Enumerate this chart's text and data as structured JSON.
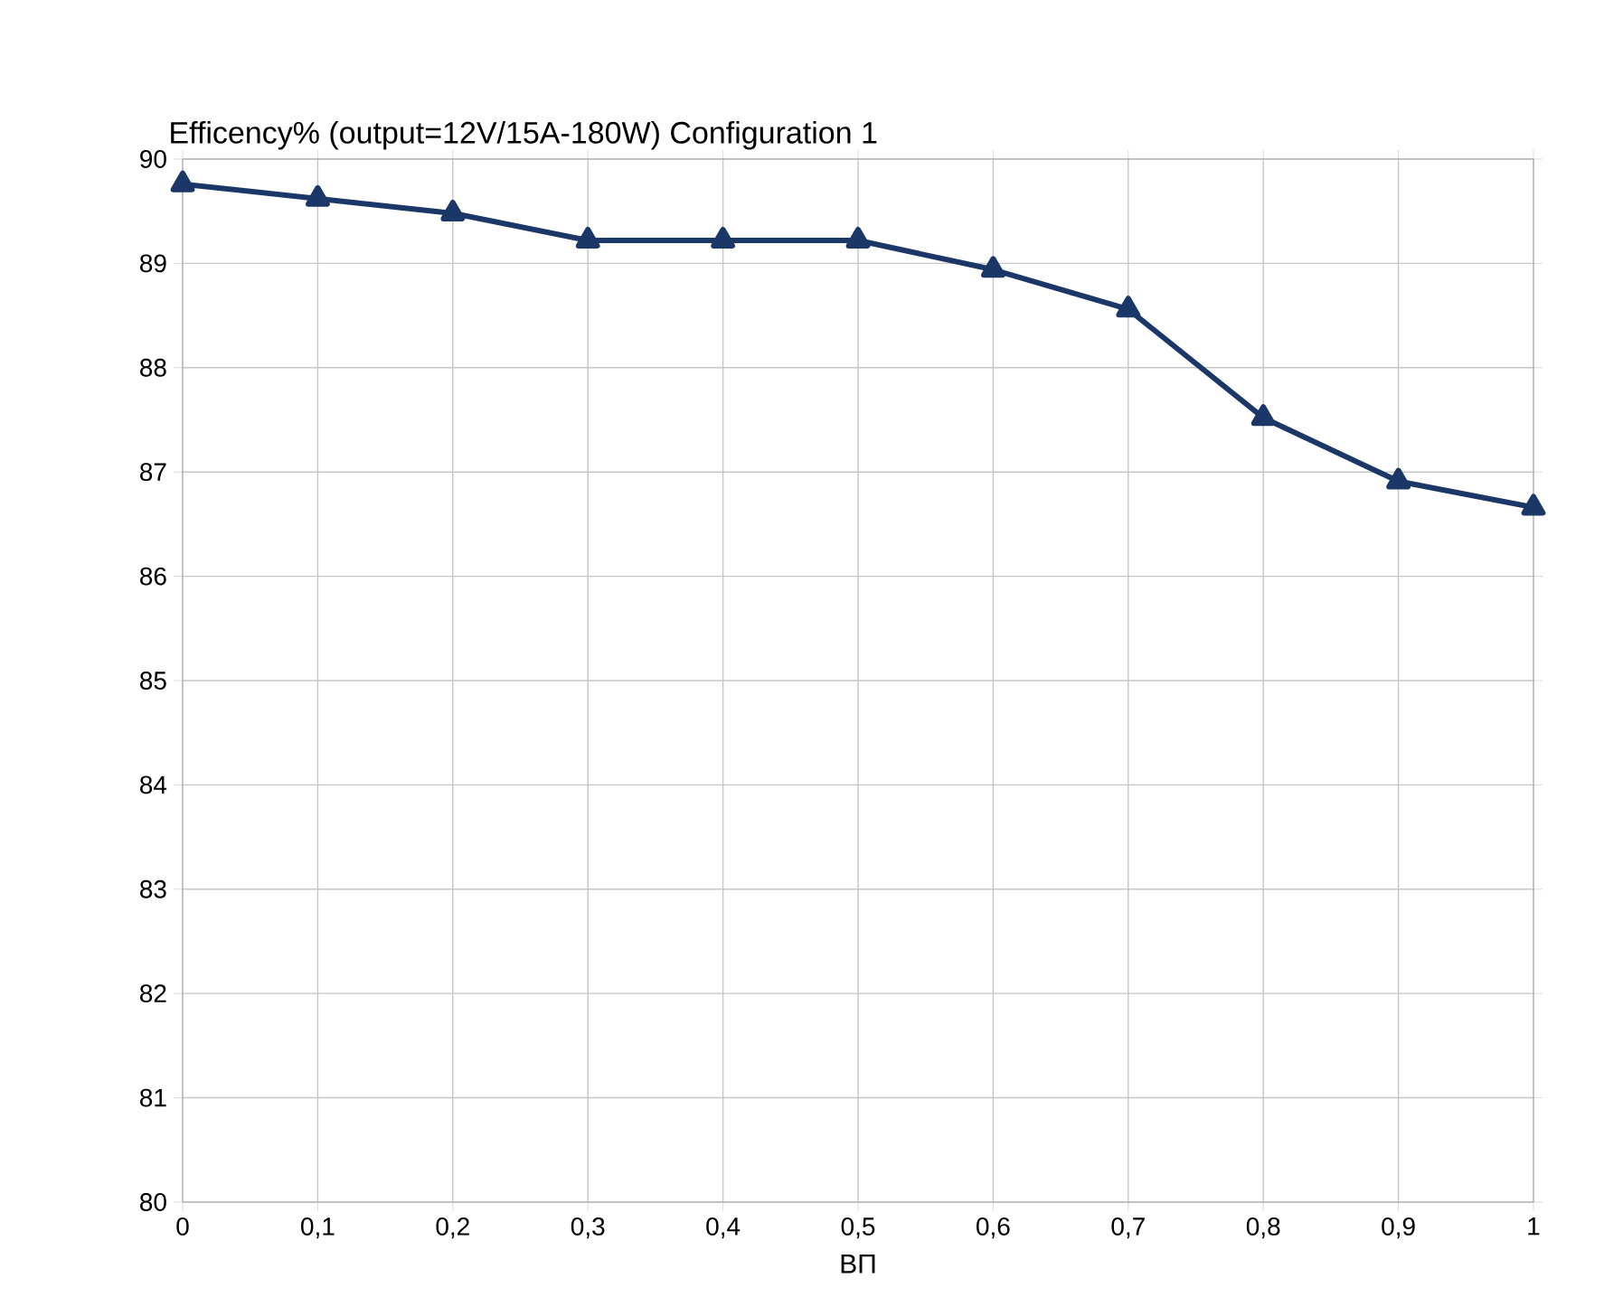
{
  "chart_data": {
    "type": "line",
    "title": "Efficency%  (output=12V/15A-180W) Configuration 1",
    "xlabel": "ВП",
    "x": [
      0,
      0.1,
      0.2,
      0.3,
      0.4,
      0.5,
      0.6,
      0.7,
      0.8,
      0.9,
      1
    ],
    "series": [
      {
        "color": "#1b3768",
        "values": [
          89.76,
          89.62,
          89.48,
          89.22,
          89.22,
          89.22,
          88.94,
          88.56,
          87.52,
          86.91,
          86.66
        ]
      }
    ],
    "xlim": [
      0,
      1
    ],
    "ylim": [
      80,
      90
    ],
    "xticks": [
      0,
      {
        "value": 0.1,
        "label": "0,1"
      },
      {
        "value": 0.2,
        "label": "0,2"
      },
      {
        "value": 0.3,
        "label": "0,3"
      },
      {
        "value": 0.4,
        "label": "0,4"
      },
      {
        "value": 0.5,
        "label": "0,5"
      },
      {
        "value": 0.6,
        "label": "0,6"
      },
      {
        "value": 0.7,
        "label": "0,7"
      },
      {
        "value": 0.8,
        "label": "0,8"
      },
      {
        "value": 0.9,
        "label": "0,9"
      },
      1
    ],
    "yticks": [
      80,
      81,
      82,
      83,
      84,
      85,
      86,
      87,
      88,
      89,
      90
    ],
    "grid": true,
    "marker": "triangle",
    "line_style": "solid"
  }
}
